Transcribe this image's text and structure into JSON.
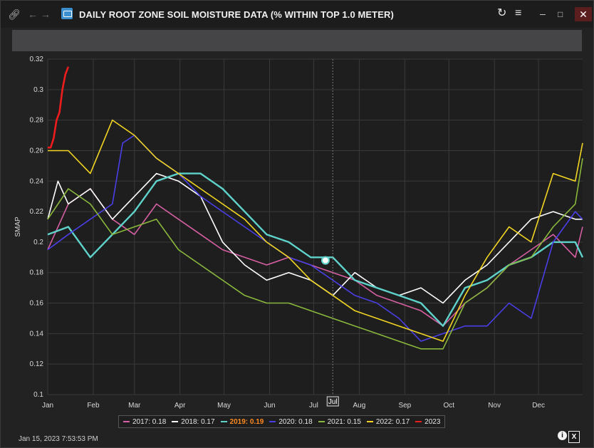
{
  "window": {
    "title": "DAILY ROOT ZONE SOIL MOISTURE DATA (% WITHIN TOP 1.0 METER)",
    "icons": [
      "link-icon",
      "back-arrow-icon",
      "forward-arrow-icon",
      "app-icon",
      "refresh-icon",
      "menu-icon",
      "minimize-icon",
      "maximize-icon",
      "close-icon"
    ]
  },
  "status": {
    "timestamp": "Jan 15, 2023 7:53:53 PM"
  },
  "footer_icons": [
    "info-icon",
    "excel-export-icon"
  ],
  "colors": {
    "background": "#222222",
    "2017": "#d65fa3",
    "2018": "#ffffff",
    "2019": "#5fd3cb",
    "2020": "#4a3ee6",
    "2021": "#8ab83c",
    "2022": "#f2d523",
    "2023": "#ee1c1c"
  },
  "legend": [
    {
      "label": "2017: 0.18",
      "color": "#d65fa3",
      "highlight": false
    },
    {
      "label": "2018: 0.17",
      "color": "#ffffff",
      "highlight": false
    },
    {
      "label": "2019: 0.19",
      "color": "#5fd3cb",
      "highlight": true
    },
    {
      "label": "2020: 0.18",
      "color": "#4a3ee6",
      "highlight": false
    },
    {
      "label": "2021: 0.15",
      "color": "#8ab83c",
      "highlight": false
    },
    {
      "label": "2022: 0.17",
      "color": "#f2d523",
      "highlight": false
    },
    {
      "label": "2023",
      "color": "#ee1c1c",
      "highlight": false
    }
  ],
  "chart_data": {
    "type": "line",
    "ylabel": "SMAP",
    "xlabel": "",
    "ylim": [
      0.1,
      0.32
    ],
    "yticks": [
      "0.1",
      "0.12",
      "0.14",
      "0.16",
      "0.18",
      "0.2",
      "0.22",
      "0.24",
      "0.26",
      "0.28",
      "0.3",
      "0.32"
    ],
    "xticks": [
      "Jan",
      "Feb",
      "Mar",
      "Apr",
      "May",
      "Jun",
      "Jul",
      "Aug",
      "Sep",
      "Oct",
      "Nov",
      "Dec"
    ],
    "xtick_days": [
      1,
      32,
      60,
      91,
      121,
      152,
      182,
      213,
      244,
      274,
      305,
      335
    ],
    "xlim_days": [
      1,
      365
    ],
    "grid": true,
    "legend_position": "bottom",
    "crosshair": {
      "label": "Jul",
      "day": 195
    },
    "series": [
      {
        "name": "2017",
        "color": "#d65fa3",
        "x": [
          1,
          15,
          30,
          45,
          60,
          75,
          90,
          105,
          120,
          135,
          150,
          165,
          180,
          195,
          210,
          225,
          240,
          255,
          270,
          285,
          300,
          315,
          330,
          345,
          360,
          365
        ],
        "y": [
          0.195,
          0.225,
          0.235,
          0.215,
          0.205,
          0.225,
          0.215,
          0.205,
          0.195,
          0.19,
          0.185,
          0.19,
          0.185,
          0.18,
          0.175,
          0.165,
          0.16,
          0.155,
          0.145,
          0.16,
          0.17,
          0.185,
          0.195,
          0.205,
          0.19,
          0.21
        ]
      },
      {
        "name": "2018",
        "color": "#ffffff",
        "x": [
          1,
          8,
          15,
          30,
          45,
          60,
          75,
          90,
          105,
          120,
          135,
          150,
          165,
          180,
          195,
          210,
          225,
          240,
          255,
          270,
          285,
          300,
          315,
          330,
          345,
          360,
          365
        ],
        "y": [
          0.215,
          0.24,
          0.225,
          0.235,
          0.215,
          0.23,
          0.245,
          0.24,
          0.23,
          0.2,
          0.185,
          0.175,
          0.18,
          0.175,
          0.165,
          0.18,
          0.17,
          0.165,
          0.17,
          0.16,
          0.175,
          0.185,
          0.2,
          0.215,
          0.22,
          0.215,
          0.215
        ]
      },
      {
        "name": "2019",
        "color": "#5fd3cb",
        "x": [
          1,
          15,
          30,
          45,
          60,
          75,
          90,
          105,
          120,
          135,
          150,
          165,
          180,
          195,
          210,
          225,
          240,
          255,
          270,
          285,
          300,
          315,
          330,
          345,
          360,
          365
        ],
        "y": [
          0.205,
          0.21,
          0.19,
          0.205,
          0.22,
          0.24,
          0.245,
          0.245,
          0.235,
          0.22,
          0.205,
          0.2,
          0.19,
          0.19,
          0.175,
          0.17,
          0.165,
          0.16,
          0.145,
          0.17,
          0.175,
          0.185,
          0.19,
          0.2,
          0.2,
          0.19
        ]
      },
      {
        "name": "2020",
        "color": "#4a3ee6",
        "x": [
          1,
          15,
          30,
          45,
          52,
          60,
          75,
          90,
          105,
          120,
          135,
          150,
          165,
          180,
          195,
          210,
          225,
          240,
          255,
          270,
          285,
          300,
          315,
          330,
          345,
          360,
          365
        ],
        "y": [
          0.195,
          0.205,
          0.215,
          0.225,
          0.265,
          0.27,
          0.255,
          0.245,
          0.23,
          0.22,
          0.21,
          0.2,
          0.19,
          0.185,
          0.175,
          0.165,
          0.16,
          0.15,
          0.135,
          0.14,
          0.145,
          0.145,
          0.16,
          0.15,
          0.2,
          0.22,
          0.215
        ]
      },
      {
        "name": "2021",
        "color": "#8ab83c",
        "x": [
          1,
          15,
          30,
          45,
          60,
          75,
          90,
          105,
          120,
          135,
          150,
          165,
          180,
          195,
          210,
          225,
          240,
          255,
          270,
          285,
          300,
          315,
          330,
          345,
          360,
          365
        ],
        "y": [
          0.215,
          0.235,
          0.225,
          0.205,
          0.21,
          0.215,
          0.195,
          0.185,
          0.175,
          0.165,
          0.16,
          0.16,
          0.155,
          0.15,
          0.145,
          0.14,
          0.135,
          0.13,
          0.13,
          0.16,
          0.17,
          0.185,
          0.19,
          0.21,
          0.225,
          0.255
        ]
      },
      {
        "name": "2022",
        "color": "#f2d523",
        "x": [
          1,
          15,
          30,
          45,
          60,
          75,
          90,
          105,
          120,
          135,
          150,
          165,
          180,
          195,
          210,
          225,
          240,
          255,
          270,
          285,
          300,
          315,
          330,
          345,
          360,
          365
        ],
        "y": [
          0.26,
          0.26,
          0.245,
          0.28,
          0.27,
          0.255,
          0.245,
          0.235,
          0.225,
          0.215,
          0.2,
          0.19,
          0.175,
          0.165,
          0.155,
          0.15,
          0.145,
          0.14,
          0.135,
          0.165,
          0.19,
          0.21,
          0.2,
          0.245,
          0.24,
          0.265
        ]
      },
      {
        "name": "2023",
        "color": "#ee1c1c",
        "x": [
          1,
          3,
          5,
          7,
          9,
          11,
          13,
          15
        ],
        "y": [
          0.262,
          0.262,
          0.268,
          0.28,
          0.285,
          0.3,
          0.31,
          0.315
        ]
      }
    ]
  }
}
